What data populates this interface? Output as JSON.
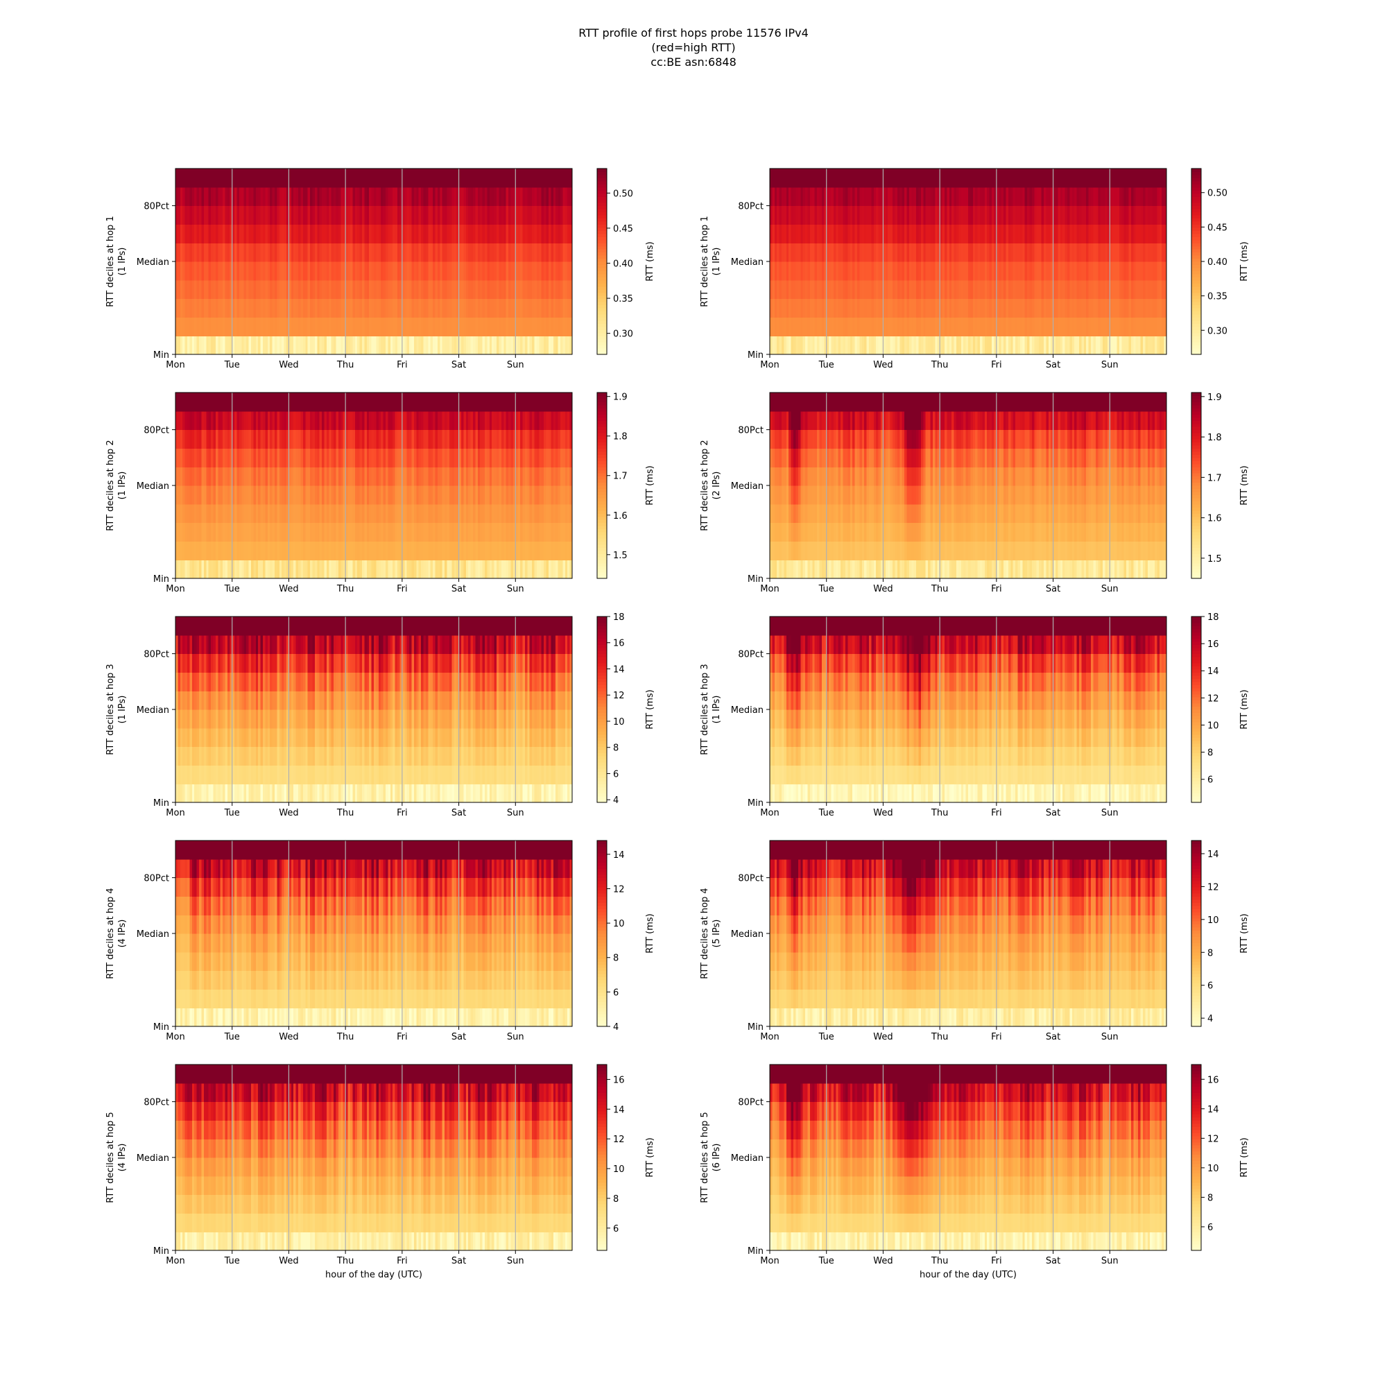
{
  "figure": {
    "title_lines": [
      "RTT profile of first hops probe 11576 IPv4",
      "(red=high RTT)",
      "cc:BE asn:6848"
    ]
  },
  "colormap": [
    "#ffffcc",
    "#ffeda0",
    "#fed976",
    "#feb24c",
    "#fd8d3c",
    "#fc4e2a",
    "#e31a1c",
    "#bd0026",
    "#800026"
  ],
  "chart_data": [
    {
      "type": "heatmap",
      "row": 0,
      "col": 0,
      "ylabel_lines": [
        "RTT deciles at hop 1",
        "(1 IPs)"
      ],
      "xlabel": "",
      "x_ticks": [
        "Mon",
        "Tue",
        "Wed",
        "Thu",
        "Fri",
        "Sat",
        "Sun"
      ],
      "y_ticks": [
        "80Pct",
        "Median",
        "Min"
      ],
      "colorbar": {
        "label": "RTT (ms)",
        "ticks": [
          0.3,
          0.35,
          0.4,
          0.45,
          0.5
        ],
        "tick_labels": [
          "0.30",
          "0.35",
          "0.40",
          "0.45",
          "0.50"
        ],
        "min": 0.27,
        "max": 0.535
      },
      "decile_levels": [
        0.3,
        0.4,
        0.41,
        0.42,
        0.43,
        0.445,
        0.47,
        0.49,
        0.51,
        0.535
      ],
      "variability": 0.12,
      "ridges": [],
      "grid": true
    },
    {
      "type": "heatmap",
      "row": 0,
      "col": 1,
      "ylabel_lines": [
        "RTT deciles at hop 1",
        "(1 IPs)"
      ],
      "xlabel": "",
      "x_ticks": [
        "Mon",
        "Tue",
        "Wed",
        "Thu",
        "Fri",
        "Sat",
        "Sun"
      ],
      "y_ticks": [
        "80Pct",
        "Median",
        "Min"
      ],
      "colorbar": {
        "label": "RTT (ms)",
        "ticks": [
          0.3,
          0.35,
          0.4,
          0.45,
          0.5
        ],
        "tick_labels": [
          "0.30",
          "0.35",
          "0.40",
          "0.45",
          "0.50"
        ],
        "min": 0.265,
        "max": 0.535
      },
      "decile_levels": [
        0.3,
        0.4,
        0.41,
        0.42,
        0.43,
        0.445,
        0.47,
        0.49,
        0.51,
        0.53
      ],
      "variability": 0.1,
      "ridges": [],
      "grid": true
    },
    {
      "type": "heatmap",
      "row": 1,
      "col": 0,
      "ylabel_lines": [
        "RTT deciles at hop 2",
        "(1 IPs)"
      ],
      "xlabel": "",
      "x_ticks": [
        "Mon",
        "Tue",
        "Wed",
        "Thu",
        "Fri",
        "Sat",
        "Sun"
      ],
      "y_ticks": [
        "80Pct",
        "Median",
        "Min"
      ],
      "colorbar": {
        "label": "RTT (ms)",
        "ticks": [
          1.5,
          1.6,
          1.7,
          1.8,
          1.9
        ],
        "tick_labels": [
          "1.5",
          "1.6",
          "1.7",
          "1.8",
          "1.9"
        ],
        "min": 1.44,
        "max": 1.91
      },
      "decile_levels": [
        1.52,
        1.62,
        1.64,
        1.66,
        1.68,
        1.7,
        1.73,
        1.77,
        1.83,
        1.91
      ],
      "variability": 0.15,
      "ridges": [],
      "grid": true
    },
    {
      "type": "heatmap",
      "row": 1,
      "col": 1,
      "ylabel_lines": [
        "RTT deciles at hop 2",
        "(2 IPs)"
      ],
      "xlabel": "",
      "x_ticks": [
        "Mon",
        "Tue",
        "Wed",
        "Thu",
        "Fri",
        "Sat",
        "Sun"
      ],
      "y_ticks": [
        "80Pct",
        "Median",
        "Min"
      ],
      "colorbar": {
        "label": "RTT (ms)",
        "ticks": [
          1.5,
          1.6,
          1.7,
          1.8,
          1.9
        ],
        "tick_labels": [
          "1.5",
          "1.6",
          "1.7",
          "1.8",
          "1.9"
        ],
        "min": 1.45,
        "max": 1.91
      },
      "decile_levels": [
        1.52,
        1.6,
        1.62,
        1.64,
        1.66,
        1.68,
        1.71,
        1.75,
        1.82,
        1.91
      ],
      "variability": 0.18,
      "ridges": [
        [
          0.42,
          0.12
        ],
        [
          2.5,
          0.25
        ]
      ],
      "grid": true
    },
    {
      "type": "heatmap",
      "row": 2,
      "col": 0,
      "ylabel_lines": [
        "RTT deciles at hop 3",
        "(1 IPs)"
      ],
      "xlabel": "",
      "x_ticks": [
        "Mon",
        "Tue",
        "Wed",
        "Thu",
        "Fri",
        "Sat",
        "Sun"
      ],
      "y_ticks": [
        "80Pct",
        "Median",
        "Min"
      ],
      "colorbar": {
        "label": "RTT (ms)",
        "ticks": [
          4,
          6,
          8,
          10,
          12,
          14,
          16,
          18
        ],
        "tick_labels": [
          "4",
          "6",
          "8",
          "10",
          "12",
          "14",
          "16",
          "18"
        ],
        "min": 3.8,
        "max": 18
      },
      "decile_levels": [
        5.0,
        7.0,
        7.8,
        8.6,
        9.4,
        10.4,
        11.8,
        13.5,
        15.8,
        18
      ],
      "variability": 0.35,
      "ridges": [],
      "grid": true
    },
    {
      "type": "heatmap",
      "row": 2,
      "col": 1,
      "ylabel_lines": [
        "RTT deciles at hop 3",
        "(1 IPs)"
      ],
      "xlabel": "",
      "x_ticks": [
        "Mon",
        "Tue",
        "Wed",
        "Thu",
        "Fri",
        "Sat",
        "Sun"
      ],
      "y_ticks": [
        "80Pct",
        "Median",
        "Min"
      ],
      "colorbar": {
        "label": "RTT (ms)",
        "ticks": [
          6,
          8,
          10,
          12,
          14,
          16,
          18
        ],
        "tick_labels": [
          "6",
          "8",
          "10",
          "12",
          "14",
          "16",
          "18"
        ],
        "min": 4.3,
        "max": 18
      },
      "decile_levels": [
        5.2,
        7.0,
        7.8,
        8.6,
        9.4,
        10.4,
        11.6,
        13.2,
        15.5,
        18
      ],
      "variability": 0.3,
      "ridges": [
        [
          2.6,
          0.4
        ],
        [
          0.4,
          0.15
        ]
      ],
      "grid": true
    },
    {
      "type": "heatmap",
      "row": 3,
      "col": 0,
      "ylabel_lines": [
        "RTT deciles at hop 4",
        "(4 IPs)"
      ],
      "xlabel": "",
      "x_ticks": [
        "Mon",
        "Tue",
        "Wed",
        "Thu",
        "Fri",
        "Sat",
        "Sun"
      ],
      "y_ticks": [
        "80Pct",
        "Median",
        "Min"
      ],
      "colorbar": {
        "label": "RTT (ms)",
        "ticks": [
          4,
          6,
          8,
          10,
          12,
          14
        ],
        "tick_labels": [
          "4",
          "6",
          "8",
          "10",
          "12",
          "14"
        ],
        "min": 4.0,
        "max": 14.8
      },
      "decile_levels": [
        5.0,
        6.6,
        7.2,
        7.8,
        8.4,
        9.1,
        10.0,
        11.2,
        12.8,
        14.8
      ],
      "variability": 0.35,
      "ridges": [],
      "grid": true
    },
    {
      "type": "heatmap",
      "row": 3,
      "col": 1,
      "ylabel_lines": [
        "RTT deciles at hop 4",
        "(5 IPs)"
      ],
      "xlabel": "",
      "x_ticks": [
        "Mon",
        "Tue",
        "Wed",
        "Thu",
        "Fri",
        "Sat",
        "Sun"
      ],
      "y_ticks": [
        "80Pct",
        "Median",
        "Min"
      ],
      "colorbar": {
        "label": "RTT (ms)",
        "ticks": [
          4,
          6,
          8,
          10,
          12,
          14
        ],
        "tick_labels": [
          "4",
          "6",
          "8",
          "10",
          "12",
          "14"
        ],
        "min": 3.5,
        "max": 14.8
      },
      "decile_levels": [
        4.8,
        6.4,
        7.0,
        7.6,
        8.2,
        8.9,
        9.8,
        11.0,
        12.6,
        14.8
      ],
      "variability": 0.3,
      "ridges": [
        [
          2.55,
          0.55
        ],
        [
          0.4,
          0.15
        ]
      ],
      "grid": true
    },
    {
      "type": "heatmap",
      "row": 4,
      "col": 0,
      "ylabel_lines": [
        "RTT deciles at hop 5",
        "(4 IPs)"
      ],
      "xlabel": "hour of the day (UTC)",
      "x_ticks": [
        "Mon",
        "Tue",
        "Wed",
        "Thu",
        "Fri",
        "Sat",
        "Sun"
      ],
      "y_ticks": [
        "80Pct",
        "Median",
        "Min"
      ],
      "colorbar": {
        "label": "RTT (ms)",
        "ticks": [
          6,
          8,
          10,
          12,
          14,
          16
        ],
        "tick_labels": [
          "6",
          "8",
          "10",
          "12",
          "14",
          "16"
        ],
        "min": 4.5,
        "max": 17
      },
      "decile_levels": [
        5.8,
        7.6,
        8.3,
        9.0,
        9.7,
        10.6,
        11.7,
        13.0,
        14.8,
        17
      ],
      "variability": 0.35,
      "ridges": [],
      "grid": true
    },
    {
      "type": "heatmap",
      "row": 4,
      "col": 1,
      "ylabel_lines": [
        "RTT deciles at hop 5",
        "(6 IPs)"
      ],
      "xlabel": "hour of the day (UTC)",
      "x_ticks": [
        "Mon",
        "Tue",
        "Wed",
        "Thu",
        "Fri",
        "Sat",
        "Sun"
      ],
      "y_ticks": [
        "80Pct",
        "Median",
        "Min"
      ],
      "colorbar": {
        "label": "RTT (ms)",
        "ticks": [
          6,
          8,
          10,
          12,
          14,
          16
        ],
        "tick_labels": [
          "6",
          "8",
          "10",
          "12",
          "14",
          "16"
        ],
        "min": 4.4,
        "max": 17
      },
      "decile_levels": [
        5.6,
        7.4,
        8.1,
        8.8,
        9.5,
        10.4,
        11.5,
        12.8,
        14.6,
        17
      ],
      "variability": 0.3,
      "ridges": [
        [
          2.55,
          0.55
        ],
        [
          0.4,
          0.15
        ]
      ],
      "grid": true
    }
  ]
}
